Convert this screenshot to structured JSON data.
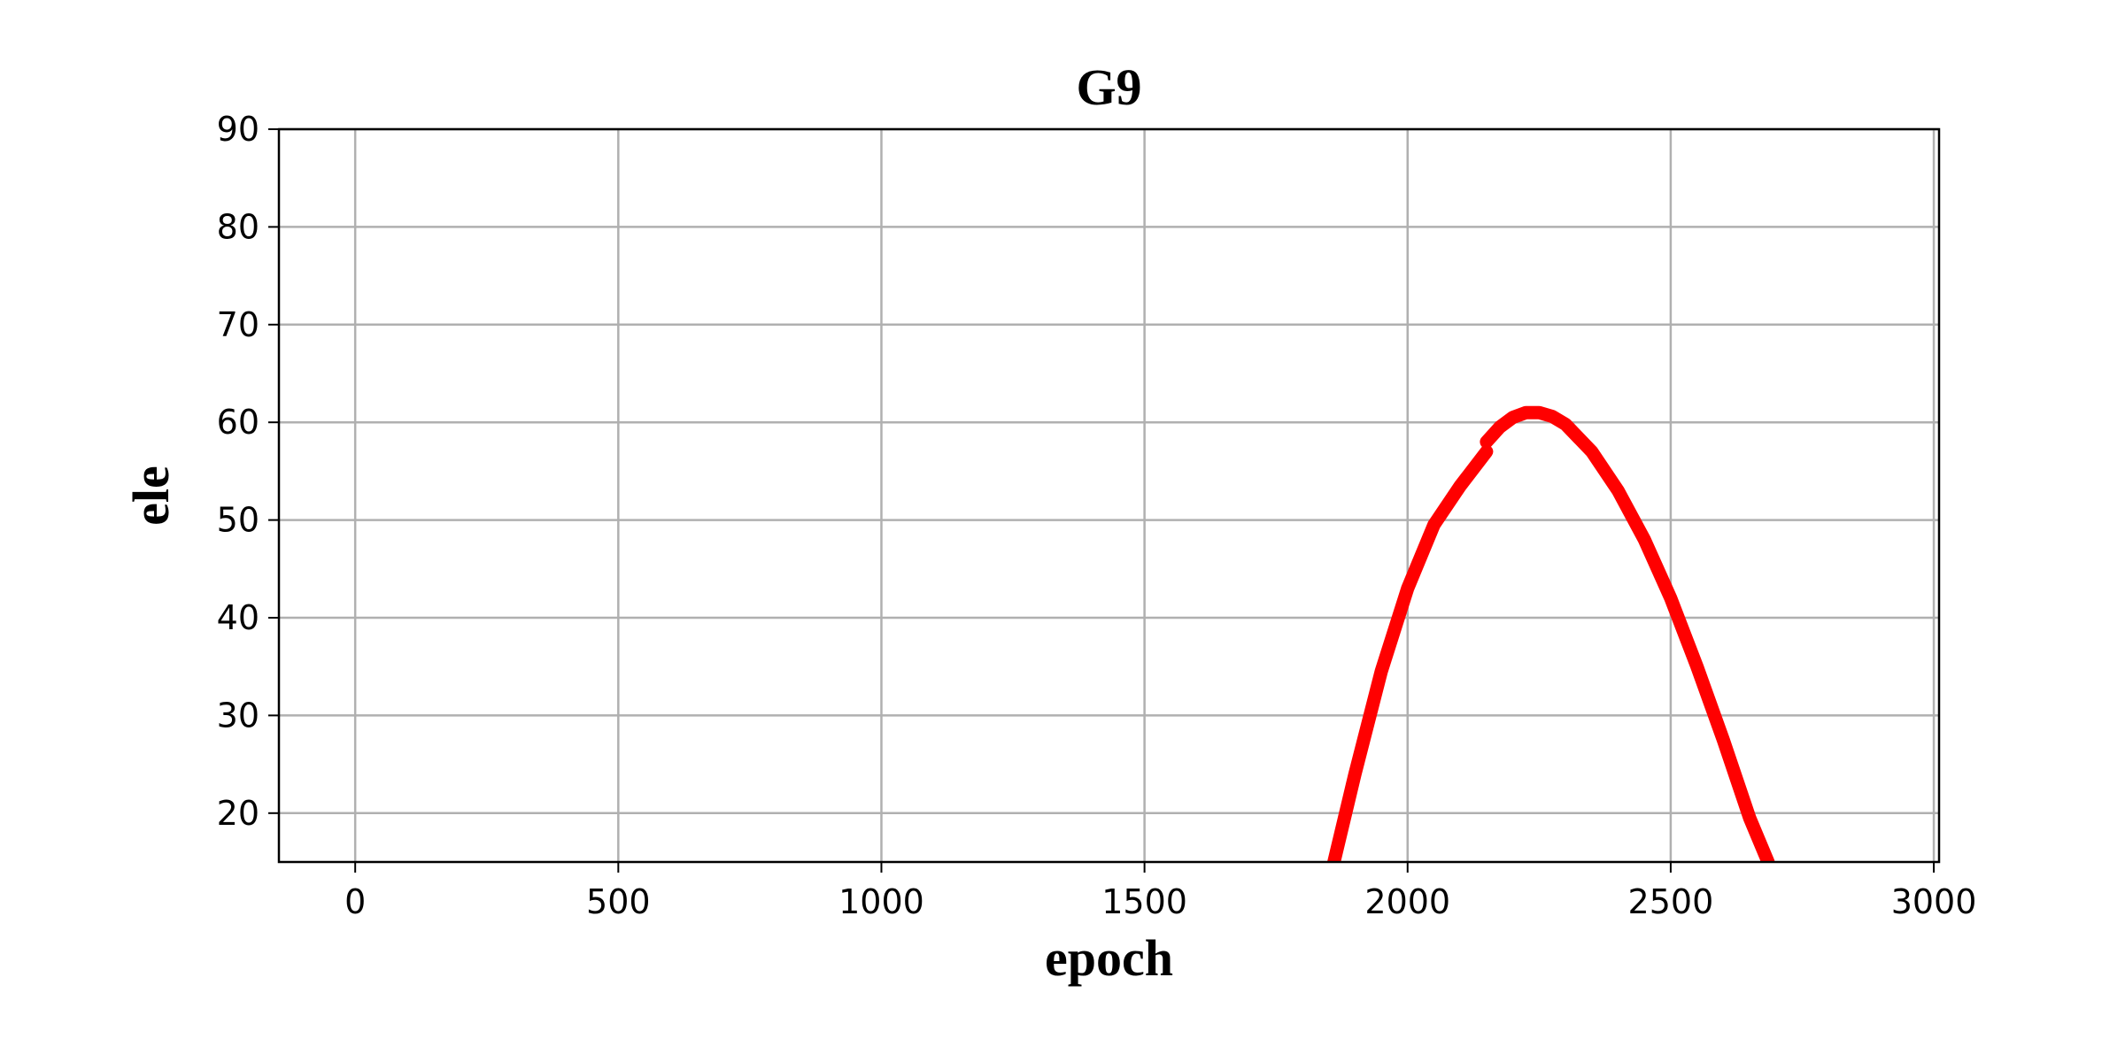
{
  "chart_data": {
    "type": "line",
    "title": "G9",
    "xlabel": "epoch",
    "ylabel": "ele",
    "xlim": [
      -145,
      3010
    ],
    "ylim": [
      15,
      90
    ],
    "xticks": [
      0,
      500,
      1000,
      1500,
      2000,
      2500,
      3000
    ],
    "yticks": [
      20,
      30,
      40,
      50,
      60,
      70,
      80,
      90
    ],
    "grid": true,
    "series": [
      {
        "color": "#ff0000",
        "x": [
          1860,
          1900,
          1950,
          2000,
          2050,
          2100,
          2150
        ],
        "y": [
          15,
          24,
          34.5,
          43,
          49.5,
          53.5,
          57
        ]
      },
      {
        "color": "#ff0000",
        "x": [
          2150,
          2175,
          2200,
          2225,
          2250,
          2275,
          2300,
          2350,
          2400,
          2450,
          2500,
          2550,
          2600,
          2650,
          2685
        ],
        "y": [
          58,
          59.5,
          60.5,
          61,
          61,
          60.6,
          59.8,
          57,
          53,
          48,
          42,
          35,
          27.5,
          19.5,
          15
        ]
      }
    ]
  }
}
